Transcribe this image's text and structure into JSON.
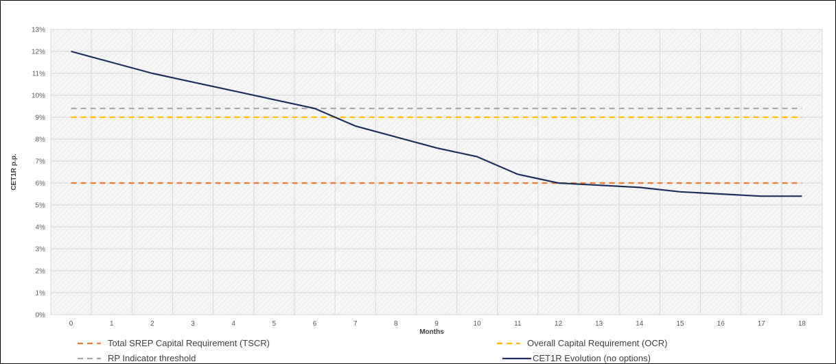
{
  "chart_data": {
    "type": "line",
    "title": "",
    "xlabel": "Months",
    "ylabel": "CET1R p.p.",
    "x": [
      0,
      1,
      2,
      3,
      4,
      5,
      6,
      7,
      8,
      9,
      10,
      11,
      12,
      13,
      14,
      15,
      16,
      17,
      18
    ],
    "xlim": [
      0,
      18
    ],
    "ylim": [
      0,
      13
    ],
    "ytick_labels": [
      "0%",
      "1%",
      "2%",
      "3%",
      "4%",
      "5%",
      "6%",
      "7%",
      "8%",
      "9%",
      "10%",
      "11%",
      "12%",
      "13%"
    ],
    "grid": true,
    "legend_position": "bottom",
    "series": [
      {
        "name": "Total SREP Capital Requirement (TSCR)",
        "style": "dashed",
        "color": "#ED7D31",
        "values": [
          6,
          6,
          6,
          6,
          6,
          6,
          6,
          6,
          6,
          6,
          6,
          6,
          6,
          6,
          6,
          6,
          6,
          6,
          6
        ]
      },
      {
        "name": "Overall Capital Requirement (OCR)",
        "style": "dashed",
        "color": "#FFC000",
        "values": [
          9,
          9,
          9,
          9,
          9,
          9,
          9,
          9,
          9,
          9,
          9,
          9,
          9,
          9,
          9,
          9,
          9,
          9,
          9
        ]
      },
      {
        "name": "RP Indicator threshold",
        "style": "dashed",
        "color": "#A5A5A5",
        "values": [
          9.4,
          9.4,
          9.4,
          9.4,
          9.4,
          9.4,
          9.4,
          9.4,
          9.4,
          9.4,
          9.4,
          9.4,
          9.4,
          9.4,
          9.4,
          9.4,
          9.4,
          9.4,
          9.4
        ]
      },
      {
        "name": "CET1R Evolution (no options)",
        "style": "solid",
        "color": "#1F2F5C",
        "values": [
          12.0,
          11.5,
          11.0,
          10.6,
          10.2,
          9.8,
          9.4,
          8.6,
          8.1,
          7.6,
          7.2,
          6.4,
          6.0,
          5.9,
          5.8,
          5.6,
          5.5,
          5.4,
          5.4
        ]
      }
    ]
  }
}
